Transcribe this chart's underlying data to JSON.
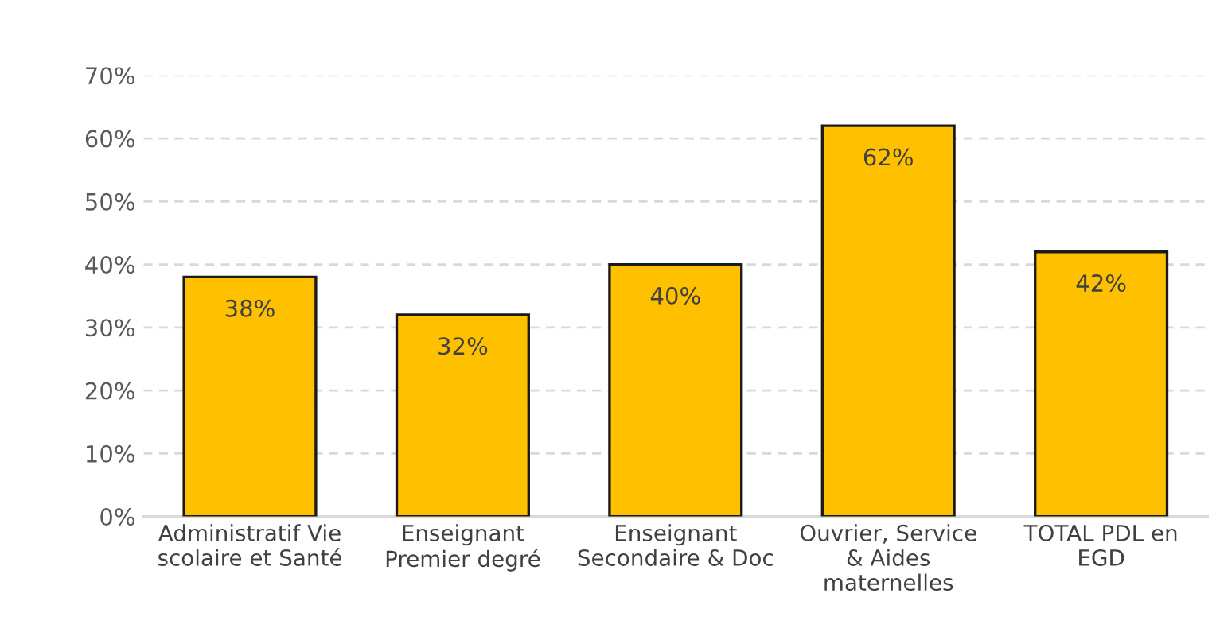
{
  "chart_data": {
    "type": "bar",
    "categories": [
      "Administratif Vie\nscolaire et Santé",
      "Enseignant\nPremier degré",
      "Enseignant\nSecondaire & Doc",
      "Ouvrier, Service\n& Aides\nmaternelles",
      "TOTAL PDL en\nEGD"
    ],
    "values": [
      38,
      32,
      40,
      62,
      42
    ],
    "value_labels": [
      "38%",
      "32%",
      "40%",
      "62%",
      "42%"
    ],
    "color": "#ffc000",
    "ylim": [
      0,
      70
    ],
    "yticks": [
      {
        "value": 0,
        "label": "0%"
      },
      {
        "value": 10,
        "label": "10%"
      },
      {
        "value": 20,
        "label": "20%"
      },
      {
        "value": 30,
        "label": "30%"
      },
      {
        "value": 40,
        "label": "40%"
      },
      {
        "value": 50,
        "label": "50%"
      },
      {
        "value": 60,
        "label": "60%"
      },
      {
        "value": 70,
        "label": "70%"
      }
    ],
    "grid": "y"
  }
}
